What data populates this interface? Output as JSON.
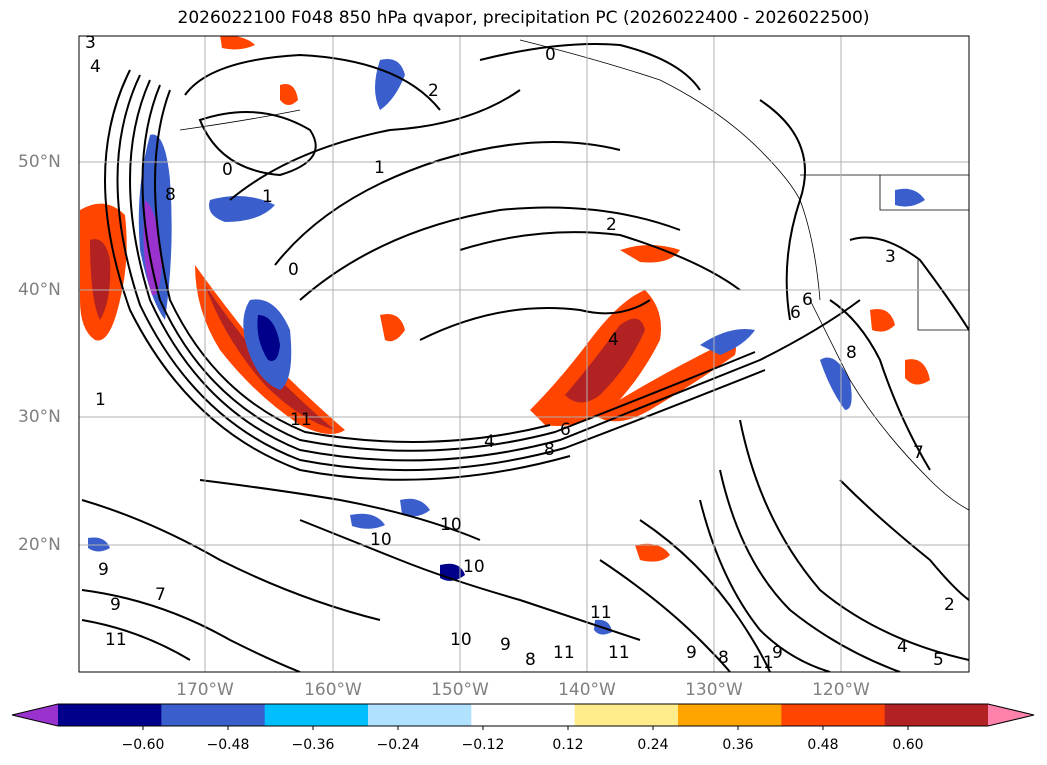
{
  "title": "2026022100 F048 850 hPa qvapor, precipitation PC (2026022400 - 2026022500)",
  "map": {
    "region": "North-East Pacific",
    "lat_labels": [
      "50°N",
      "40°N",
      "30°N",
      "20°N"
    ],
    "lon_labels": [
      "170°W",
      "160°W",
      "150°W",
      "140°W",
      "130°W",
      "120°W"
    ],
    "contour_labels": [
      "3",
      "4",
      "2",
      "0",
      "1",
      "0",
      "1",
      "0",
      "2",
      "3",
      "1",
      "7",
      "9",
      "10",
      "11",
      "10",
      "9",
      "8",
      "4",
      "6",
      "8",
      "10",
      "11",
      "11",
      "11",
      "9",
      "8",
      "11",
      "9",
      "2",
      "4",
      "6",
      "8",
      "7",
      "10",
      "9",
      "8",
      "11",
      "5",
      "6",
      "4"
    ]
  },
  "colorbar": {
    "ticks": [
      "−0.60",
      "−0.48",
      "−0.36",
      "−0.24",
      "−0.12",
      "0.12",
      "0.24",
      "0.36",
      "0.48",
      "0.60"
    ],
    "colors": [
      "#9a32cd",
      "#00008b",
      "#3a5fcd",
      "#00bfff",
      "#b0e2ff",
      "#ffffff",
      "#ffec8b",
      "#ffa500",
      "#ff4500",
      "#b22222",
      "#ff82ab"
    ]
  }
}
